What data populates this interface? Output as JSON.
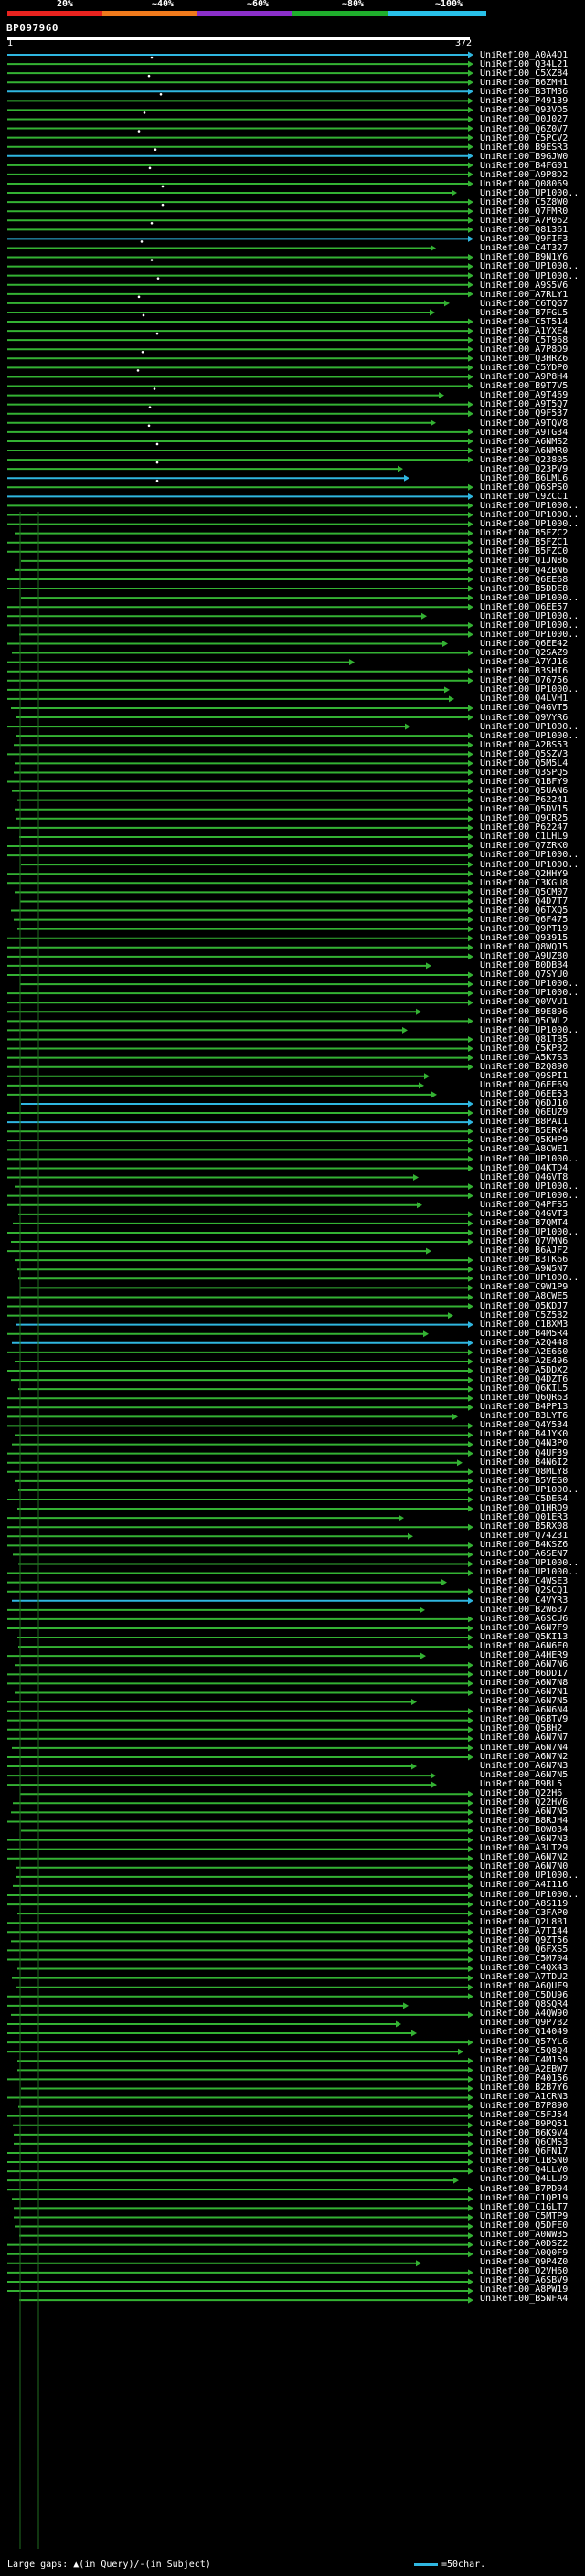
{
  "identity_scale": [
    {
      "label": "20%",
      "color": "#e8231f"
    },
    {
      "label": "~40%",
      "color": "#f07a1c"
    },
    {
      "label": "~60%",
      "color": "#8b2fc9"
    },
    {
      "label": "~80%",
      "color": "#1fae2c"
    },
    {
      "label": "~100%",
      "color": "#28c0e8"
    }
  ],
  "query": {
    "id": "BP097960",
    "start": "1",
    "end": "372"
  },
  "hits": [
    "UniRef100_A0A4Q1",
    "UniRef100_Q34L21",
    "UniRef100_C5XZ84",
    "UniRef100_B6ZMH1",
    "UniRef100_B3TM36",
    "UniRef100_P49139",
    "UniRef100_Q93VD5",
    "UniRef100_Q0J027",
    "UniRef100_Q6Z0V7",
    "UniRef100_C5PCV2",
    "UniRef100_B9ESR3",
    "UniRef100_B9GJW0",
    "UniRef100_B4FG01",
    "UniRef100_A9P8D2",
    "UniRef100_Q08069",
    "UniRef100_UP1000..",
    "UniRef100_C5Z8W0",
    "UniRef100_Q7FMR0",
    "UniRef100_A7P062",
    "UniRef100_Q81361",
    "UniRef100_Q9FIF3",
    "UniRef100_C4T327",
    "UniRef100_B9N1Y6",
    "UniRef100_UP1000..",
    "UniRef100_UP1000..",
    "UniRef100_A9S5V6",
    "UniRef100_A7RLY1",
    "UniRef100_C6TQG7",
    "UniRef100_B7FGL5",
    "UniRef100_C5T514",
    "UniRef100_A1YXE4",
    "UniRef100_C5T968",
    "UniRef100_A7P8D9",
    "UniRef100_Q3HRZ6",
    "UniRef100_C5YDP0",
    "UniRef100_A9P8H4",
    "UniRef100_B9T7V5",
    "UniRef100_A9T469",
    "UniRef100_A9T5Q7",
    "UniRef100_Q9F537",
    "UniRef100_A9TQV8",
    "UniRef100_A9TG34",
    "UniRef100_A6NMS2",
    "UniRef100_A6NMR0",
    "UniRef100_Q23805",
    "UniRef100_Q23PV9",
    "UniRef100_B6LML6",
    "UniRef100_Q6SPS0",
    "UniRef100_C9ZCC1",
    "UniRef100_UP1000..",
    "UniRef100_UP1000..",
    "UniRef100_UP1000..",
    "UniRef100_B5FZC2",
    "UniRef100_B5FZC1",
    "UniRef100_B5FZC0",
    "UniRef100_Q1JN86",
    "UniRef100_Q4ZBN6",
    "UniRef100_Q6EE68",
    "UniRef100_B5DDE8",
    "UniRef100_UP1000..",
    "UniRef100_Q6EE57",
    "UniRef100_UP1000..",
    "UniRef100_UP1000..",
    "UniRef100_UP1000..",
    "UniRef100_Q6EE42",
    "UniRef100_Q2SAZ9",
    "UniRef100_A7YJ16",
    "UniRef100_B3SHI6",
    "UniRef100_O76756",
    "UniRef100_UP1000..",
    "UniRef100_Q4LVH1",
    "UniRef100_Q4GVT5",
    "UniRef100_Q9VYR6",
    "UniRef100_UP1000..",
    "UniRef100_UP1000..",
    "UniRef100_A2BS53",
    "UniRef100_Q5SZV3",
    "UniRef100_Q5M5L4",
    "UniRef100_Q3SPQ5",
    "UniRef100_Q1BFY9",
    "UniRef100_Q5UAN6",
    "UniRef100_P62241",
    "UniRef100_Q5DV15",
    "UniRef100_Q9CR25",
    "UniRef100_P62247",
    "UniRef100_C1LHL9",
    "UniRef100_Q7ZRK0",
    "UniRef100_UP1000..",
    "UniRef100_UP1000..",
    "UniRef100_Q2HHY9",
    "UniRef100_C3KGU8",
    "UniRef100_Q5CM07",
    "UniRef100_Q4D7T7",
    "UniRef100_Q6TXQ5",
    "UniRef100_Q6F475",
    "UniRef100_Q9PT19",
    "UniRef100_Q93915",
    "UniRef100_Q8WQJ5",
    "UniRef100_A9UZ80",
    "UniRef100_B0DBB4",
    "UniRef100_Q7SYU0",
    "UniRef100_UP1000..",
    "UniRef100_UP1000..",
    "UniRef100_Q0VVU1",
    "UniRef100_B9E896",
    "UniRef100_Q5CWL2",
    "UniRef100_UP1000..",
    "UniRef100_Q81TB5",
    "UniRef100_C5KP32",
    "UniRef100_A5K7S3",
    "UniRef100_B2Q890",
    "UniRef100_Q9SPI1",
    "UniRef100_Q6EE69",
    "UniRef100_Q6EE53",
    "UniRef100_Q6DJ10",
    "UniRef100_Q6EUZ9",
    "UniRef100_B8PAI1",
    "UniRef100_B5ERY4",
    "UniRef100_Q5KHP9",
    "UniRef100_A8CWE1",
    "UniRef100_UP1000..",
    "UniRef100_Q4KTD4",
    "UniRef100_Q4GVT8",
    "UniRef100_UP1000..",
    "UniRef100_UP1000..",
    "UniRef100_Q4PFS5",
    "UniRef100_Q4GVT3",
    "UniRef100_B7QMT4",
    "UniRef100_UP1000..",
    "UniRef100_Q7VMN6",
    "UniRef100_B6AJF2",
    "UniRef100_B3TK66",
    "UniRef100_A9N5N7",
    "UniRef100_UP1000..",
    "UniRef100_C9W1P9",
    "UniRef100_A8CWE5",
    "UniRef100_Q5KDJ7",
    "UniRef100_C5Z5B2",
    "UniRef100_C1BXM3",
    "UniRef100_B4M5R4",
    "UniRef100_A2Q448",
    "UniRef100_A2E660",
    "UniRef100_A2E496",
    "UniRef100_A5DDX2",
    "UniRef100_Q4DZT6",
    "UniRef100_Q6KIL5",
    "UniRef100_Q6QR63",
    "UniRef100_B4PP13",
    "UniRef100_B3LYT6",
    "UniRef100_Q4Y534",
    "UniRef100_B4JYK0",
    "UniRef100_Q4N3P0",
    "UniRef100_Q4UF39",
    "UniRef100_B4N6I2",
    "UniRef100_Q8MLY8",
    "UniRef100_B5VEG0",
    "UniRef100_UP1000..",
    "UniRef100_C5DE64",
    "UniRef100_Q1HRQ9",
    "UniRef100_Q01ER3",
    "UniRef100_B5RX08",
    "UniRef100_Q74Z31",
    "UniRef100_B4KSZ6",
    "UniRef100_A6SEN7",
    "UniRef100_UP1000..",
    "UniRef100_UP1000..",
    "UniRef100_C4WSE3",
    "UniRef100_Q2SCQ1",
    "UniRef100_C4VYR3",
    "UniRef100_B2W637",
    "UniRef100_A6SCU6",
    "UniRef100_A6N7F9",
    "UniRef100_Q5KI13",
    "UniRef100_A6N6E0",
    "UniRef100_A4HER9",
    "UniRef100_A6N7N6",
    "UniRef100_B6DD17",
    "UniRef100_A6N7N8",
    "UniRef100_A6N7N1",
    "UniRef100_A6N7N5",
    "UniRef100_A6N6N4",
    "UniRef100_Q6BTV9",
    "UniRef100_Q5BH2",
    "UniRef100_A6N7N7",
    "UniRef100_A6N7N4",
    "UniRef100_A6N7N2",
    "UniRef100_A6N7N3",
    "UniRef100_A6N7N5",
    "UniRef100_B9BL5",
    "UniRef100_Q22H6",
    "UniRef100_Q22HV6",
    "UniRef100_A6N7N5",
    "UniRef100_B8RJH4",
    "UniRef100_B0W034",
    "UniRef100_A6N7N3",
    "UniRef100_A3LT29",
    "UniRef100_A6N7N2",
    "UniRef100_A6N7N0",
    "UniRef100_UP1000..",
    "UniRef100_A4I116",
    "UniRef100_UP1000..",
    "UniRef100_A8S119",
    "UniRef100_C3FAP0",
    "UniRef100_Q2L8B1",
    "UniRef100_A7TI44",
    "UniRef100_Q9ZT56",
    "UniRef100_Q6FXS5",
    "UniRef100_C5M704",
    "UniRef100_C4QX43",
    "UniRef100_A7TDU2",
    "UniRef100_A6QUF9",
    "UniRef100_C5DU96",
    "UniRef100_Q8SQR4",
    "UniRef100_A4QW90",
    "UniRef100_Q9P7B2",
    "UniRef100_Q14049",
    "UniRef100_Q57YL6",
    "UniRef100_C5Q8Q4",
    "UniRef100_C4M159",
    "UniRef100_A2EBW7",
    "UniRef100_P40156",
    "UniRef100_B2B7Y6",
    "UniRef100_A1CRN3",
    "UniRef100_B7P890",
    "UniRef100_C5FJ54",
    "UniRef100_B9PQ51",
    "UniRef100_B6K9V4",
    "UniRef100_Q6CMS3",
    "UniRef100_Q6FN17",
    "UniRef100_C1BSN0",
    "UniRef100_Q4LLV0",
    "UniRef100_Q4LLU9",
    "UniRef100_B7PD94",
    "UniRef100_C1QP19",
    "UniRef100_C1GLT7",
    "UniRef100_C5MTP9",
    "UniRef100_Q5DFE0",
    "UniRef100_A0NW35",
    "UniRef100_A0DSZ2",
    "UniRef100_A0Q0F9",
    "UniRef100_Q9P4Z0",
    "UniRef100_Q2VH60",
    "UniRef100_A6SBV9",
    "UniRef100_A8PW19",
    "UniRef100_B5NFA4"
  ],
  "footer": {
    "gaps_label": "Large gaps:",
    "gaps_legend": "(in Query)/",
    "gaps_legend2": "(in Subject)",
    "scale_label": "=50char."
  }
}
